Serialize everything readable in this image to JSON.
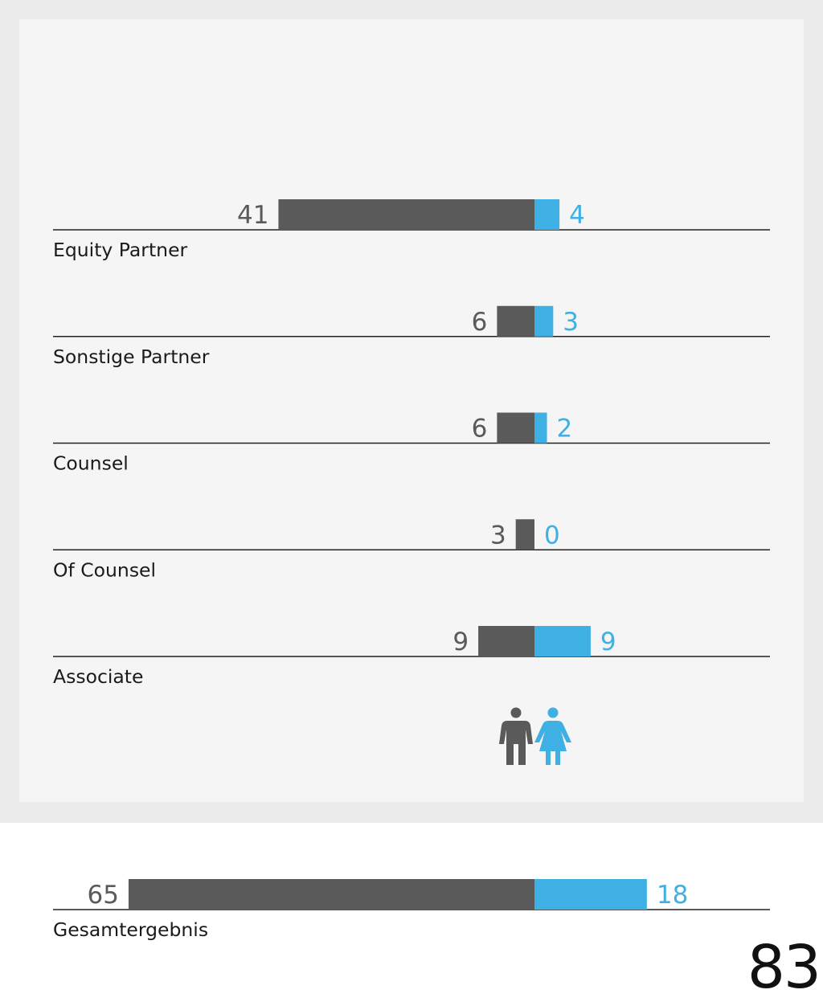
{
  "colors": {
    "men": "#5a5a5a",
    "women": "#3fb0e3",
    "baseline": "#222222",
    "label": "#1a1a1a"
  },
  "legend": {
    "men_icon": "man-icon",
    "women_icon": "woman-icon"
  },
  "chart_data": {
    "type": "bar",
    "orientation": "horizontal-diverging",
    "categories": [
      "Equity Partner",
      "Sonstige Partner",
      "Counsel",
      "Of Counsel",
      "Associate"
    ],
    "series": [
      {
        "values": [
          41,
          6,
          6,
          3,
          9
        ]
      },
      {
        "values": [
          4,
          3,
          2,
          0,
          9
        ]
      }
    ],
    "total": {
      "category": "Gesamtergebnis",
      "values": [
        65,
        18
      ]
    },
    "legend": "icons-below",
    "grid": false
  },
  "page_number": "83"
}
